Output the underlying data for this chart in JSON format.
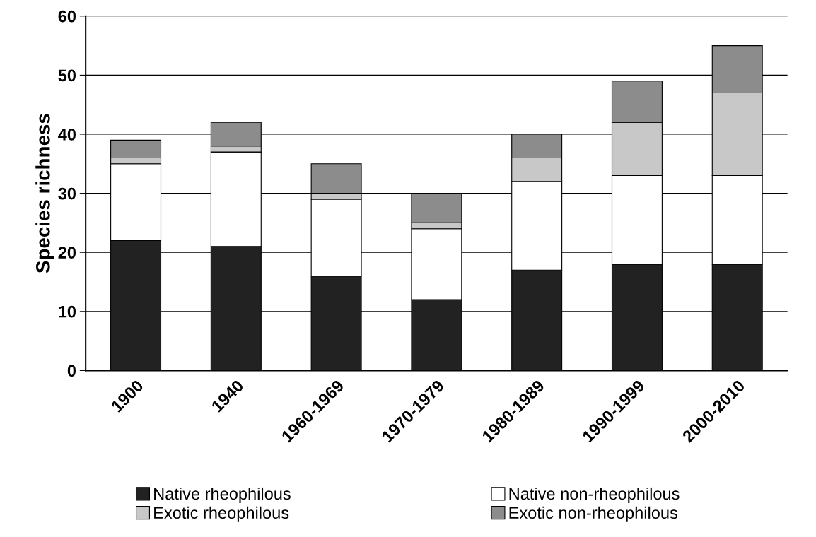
{
  "chart_data": {
    "type": "bar",
    "stacked": true,
    "ylabel": "Species richness",
    "categories": [
      "1900",
      "1940",
      "1960-1969",
      "1970-1979",
      "1980-1989",
      "1990-1999",
      "2000-2010"
    ],
    "series": [
      {
        "name": "Native rheophilous",
        "color": "#222222",
        "values": [
          22,
          21,
          16,
          12,
          17,
          18,
          18
        ]
      },
      {
        "name": "Native non-rheophilous",
        "color": "#ffffff",
        "values": [
          13,
          16,
          13,
          12,
          15,
          15,
          15
        ]
      },
      {
        "name": "Exotic rheophilous",
        "color": "#c8c8c8",
        "values": [
          1,
          1,
          1,
          1,
          4,
          9,
          14
        ]
      },
      {
        "name": "Exotic non-rheophilous",
        "color": "#8c8c8c",
        "values": [
          3,
          4,
          5,
          5,
          4,
          7,
          8
        ]
      }
    ],
    "ylim": [
      0,
      60
    ],
    "yticks": [
      0,
      10,
      20,
      30,
      40,
      50,
      60
    ],
    "grid": "y",
    "legend": "bottom"
  }
}
